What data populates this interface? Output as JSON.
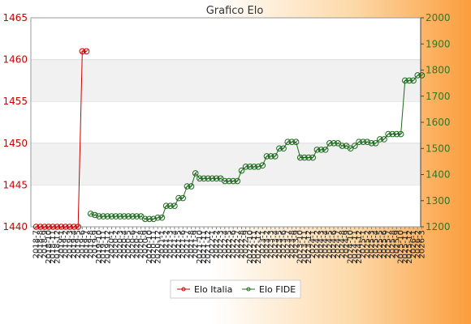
{
  "chart_data": {
    "type": "line",
    "title": "Grafico Elo",
    "x": [
      "2018-7",
      "2018-8",
      "2018-9",
      "2018-10",
      "2018-11",
      "2018-12",
      "2019-1",
      "2019-2",
      "2019-3",
      "2019-4",
      "2019-5",
      "2019-6",
      "2019-7",
      "2019-8",
      "2019-9",
      "2019-10",
      "2019-11",
      "2019-12",
      "2020-1",
      "2020-2",
      "2020-3",
      "2020-4",
      "2020-5",
      "2020-6",
      "2020-7",
      "2020-8",
      "2020-9",
      "2020-10",
      "2020-11",
      "2020-12",
      "2021-1",
      "2021-2",
      "2021-3",
      "2021-4",
      "2021-5",
      "2021-6",
      "2021-7",
      "2021-8",
      "2021-9",
      "2021-10",
      "2021-11",
      "2021-12",
      "2022-1",
      "2022-2",
      "2022-3",
      "2022-4",
      "2022-5",
      "2022-6",
      "2022-7",
      "2022-8",
      "2022-9",
      "2022-10",
      "2022-11",
      "2022-12",
      "2023-1",
      "2023-2",
      "2023-3",
      "2023-4",
      "2023-5",
      "2023-6",
      "2023-7",
      "2023-8",
      "2023-9",
      "2023-10",
      "2023-11",
      "2023-12",
      "2024-1",
      "2024-2",
      "2024-3",
      "2024-4",
      "2024-5",
      "2024-6",
      "2024-7",
      "2024-8",
      "2024-9",
      "2024-10",
      "2024-11",
      "2024-12",
      "2025-1",
      "2025-2",
      "2025-3",
      "2025-4",
      "2025-5",
      "2025-6",
      "2025-7",
      "2025-8",
      "2025-9",
      "2025-10",
      "2025-11",
      "2025-12",
      "2026-1",
      "2026-2",
      "2026-3"
    ],
    "x_labels_shown": [
      "2018-7",
      "2018-8",
      "2018-9",
      "2018-10",
      "2018-11",
      "2018-12",
      "2019-1",
      "2019-2",
      "2019-3",
      "2019-4",
      "2019-5",
      "2019-6",
      "2019-7",
      "2019-8",
      "2019-9",
      "2019-10",
      "2019-11",
      "2019-12",
      "2020-1",
      "2020-2",
      "2020-3",
      "2020-4",
      "2020-5",
      "2020-6",
      "2020-7",
      "2020-8",
      "2020-9",
      "2020-10",
      "2020-11",
      "2020-12",
      "2021-1",
      "2021-2",
      "2021-3",
      "2021-4",
      "2021-5",
      "2021-6",
      "2021-7",
      "2021-8",
      "2021-9",
      "2021-10",
      "2021-11",
      "2021-12",
      "2022-1",
      "2022-2",
      "2022-3",
      "2022-4",
      "2022-5",
      "2022-6",
      "2022-7",
      "2022-8",
      "2022-9",
      "2022-10",
      "2022-11",
      "2022-12",
      "2023-1",
      "2023-2",
      "2023-3",
      "2023-4",
      "2023-5",
      "2023-6",
      "2023-7",
      "2023-8",
      "2023-9",
      "2023-10",
      "2023-11",
      "2023-12",
      "2024-1",
      "2024-2",
      "2024-3",
      "2024-4",
      "2024-5",
      "2024-6",
      "2024-7",
      "2024-8",
      "2024-9",
      "2024-10",
      "2024-11",
      "2024-12",
      "2025-1",
      "2025-2",
      "2025-3",
      "2025-4",
      "2025-5",
      "2025-6",
      "2025-7",
      "2025-8",
      "2025-9",
      "2025-10",
      "2025-11",
      "2025-12",
      "2026-1",
      "2026-2",
      "2026-3"
    ],
    "y_left": {
      "min": 1440,
      "max": 1465,
      "ticks": [
        1440,
        1445,
        1450,
        1455,
        1460,
        1465
      ],
      "color": "#cc0000"
    },
    "y_right": {
      "min": 1200,
      "max": 2000,
      "ticks": [
        1200,
        1300,
        1400,
        1500,
        1600,
        1700,
        1800,
        1900,
        2000
      ],
      "color": "#2a7a2a"
    },
    "series": [
      {
        "name": "Elo Italia",
        "axis": "left",
        "color": "#cc0000",
        "points": [
          [
            0,
            1440
          ],
          [
            1,
            1440
          ],
          [
            2,
            1440
          ],
          [
            3,
            1440
          ],
          [
            4,
            1440
          ],
          [
            5,
            1440
          ],
          [
            6,
            1440
          ],
          [
            7,
            1440
          ],
          [
            8,
            1440
          ],
          [
            9,
            1440
          ],
          [
            10,
            1440
          ],
          [
            11,
            1461
          ],
          [
            12,
            1461
          ]
        ]
      },
      {
        "name": "Elo FIDE",
        "axis": "right",
        "color": "#1e6b1e",
        "points": [
          [
            13,
            1250
          ],
          [
            14,
            1245
          ],
          [
            15,
            1240
          ],
          [
            16,
            1240
          ],
          [
            17,
            1240
          ],
          [
            18,
            1240
          ],
          [
            19,
            1240
          ],
          [
            20,
            1240
          ],
          [
            21,
            1240
          ],
          [
            22,
            1240
          ],
          [
            23,
            1240
          ],
          [
            24,
            1240
          ],
          [
            25,
            1240
          ],
          [
            26,
            1230
          ],
          [
            27,
            1230
          ],
          [
            28,
            1230
          ],
          [
            29,
            1235
          ],
          [
            30,
            1235
          ],
          [
            31,
            1280
          ],
          [
            32,
            1280
          ],
          [
            33,
            1280
          ],
          [
            34,
            1310
          ],
          [
            35,
            1310
          ],
          [
            36,
            1355
          ],
          [
            37,
            1355
          ],
          [
            38,
            1405
          ],
          [
            39,
            1385
          ],
          [
            40,
            1385
          ],
          [
            41,
            1385
          ],
          [
            42,
            1385
          ],
          [
            43,
            1385
          ],
          [
            44,
            1385
          ],
          [
            45,
            1375
          ],
          [
            46,
            1375
          ],
          [
            47,
            1375
          ],
          [
            48,
            1375
          ],
          [
            49,
            1415
          ],
          [
            50,
            1430
          ],
          [
            51,
            1430
          ],
          [
            52,
            1430
          ],
          [
            53,
            1430
          ],
          [
            54,
            1435
          ],
          [
            55,
            1470
          ],
          [
            56,
            1470
          ],
          [
            57,
            1470
          ],
          [
            58,
            1500
          ],
          [
            59,
            1500
          ],
          [
            60,
            1525
          ],
          [
            61,
            1525
          ],
          [
            62,
            1525
          ],
          [
            63,
            1465
          ],
          [
            64,
            1465
          ],
          [
            65,
            1465
          ],
          [
            66,
            1465
          ],
          [
            67,
            1495
          ],
          [
            68,
            1495
          ],
          [
            69,
            1495
          ],
          [
            70,
            1520
          ],
          [
            71,
            1520
          ],
          [
            72,
            1520
          ],
          [
            73,
            1510
          ],
          [
            74,
            1510
          ],
          [
            75,
            1500
          ],
          [
            76,
            1510
          ],
          [
            77,
            1525
          ],
          [
            78,
            1525
          ],
          [
            79,
            1525
          ],
          [
            80,
            1520
          ],
          [
            81,
            1520
          ],
          [
            82,
            1535
          ],
          [
            83,
            1535
          ],
          [
            84,
            1555
          ],
          [
            85,
            1555
          ],
          [
            86,
            1555
          ],
          [
            87,
            1555
          ],
          [
            88,
            1760
          ],
          [
            89,
            1760
          ],
          [
            90,
            1760
          ],
          [
            91,
            1780
          ],
          [
            92,
            1780
          ]
        ]
      }
    ],
    "legend": [
      "Elo Italia",
      "Elo FIDE"
    ],
    "legend_position": "bottom",
    "grid": true
  }
}
